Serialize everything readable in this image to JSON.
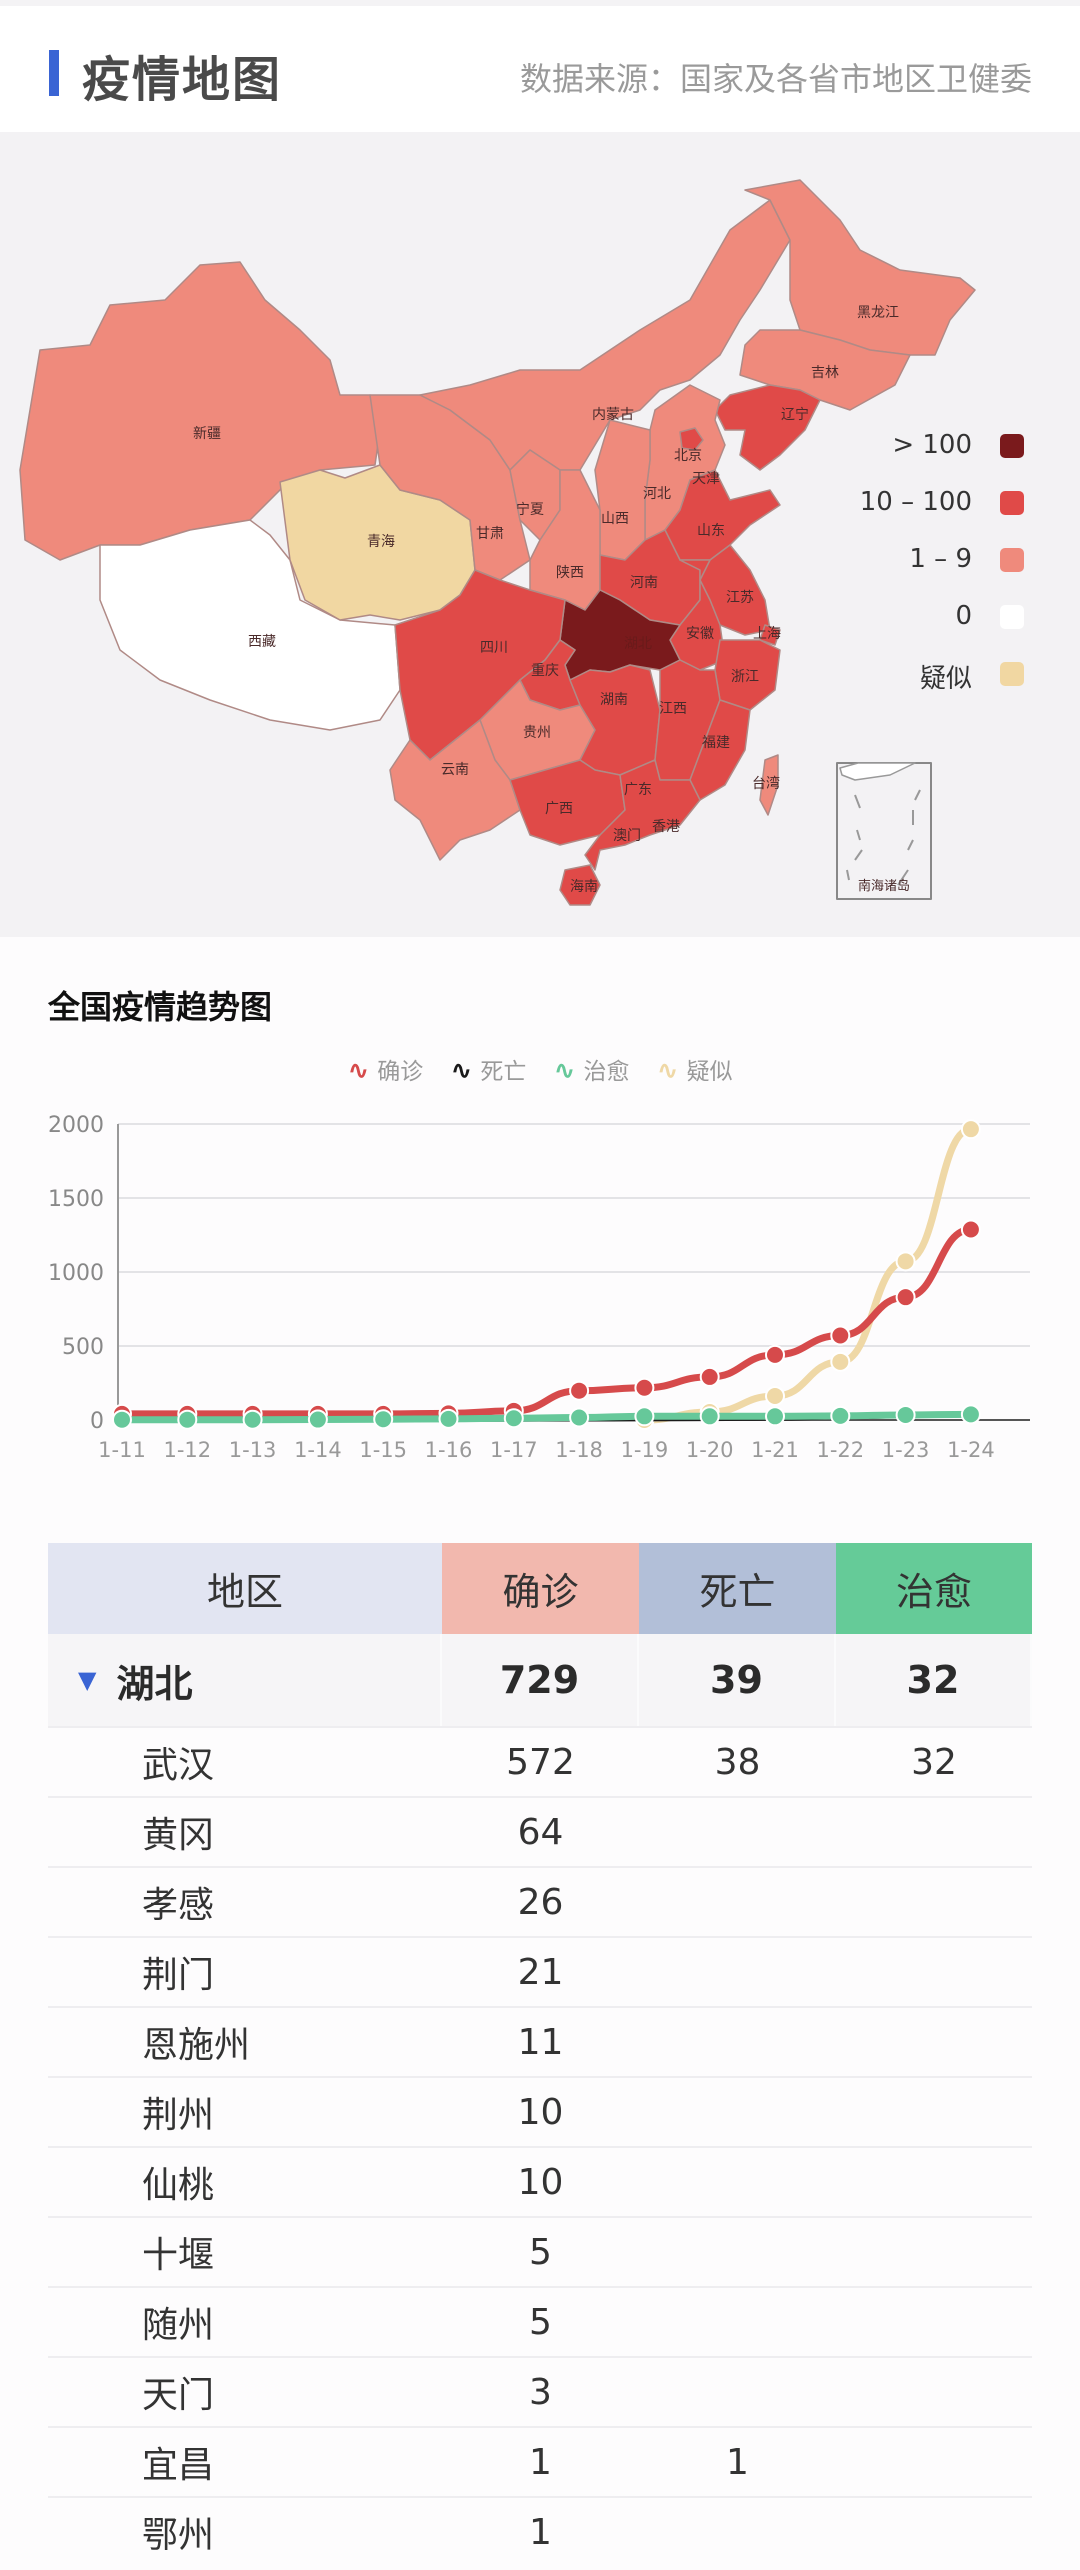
{
  "header": {
    "title": "疫情地图",
    "source": "数据来源：国家及各省市地区卫健委"
  },
  "map": {
    "legend": [
      {
        "label": "> 100",
        "color": "#7a1a1c"
      },
      {
        "label": "10 – 100",
        "color": "#e04a48"
      },
      {
        "label": "1 – 9",
        "color": "#ef8a7c"
      },
      {
        "label": "0",
        "color": "#ffffff"
      },
      {
        "label": "疑似",
        "color": "#f1d7a2"
      }
    ],
    "provinces": {
      "xinjiang": "新疆",
      "xizang": "西藏",
      "qinghai": "青海",
      "gansu": "甘肃",
      "ningxia": "宁夏",
      "neimenggu": "内蒙古",
      "heilongjiang": "黑龙江",
      "jilin": "吉林",
      "liaoning": "辽宁",
      "beijing": "北京",
      "tianjin": "天津",
      "hebei": "河北",
      "shanxi": "山西",
      "shandong": "山东",
      "shaanxi": "陕西",
      "henan": "河南",
      "jiangsu": "江苏",
      "shanghai": "上海",
      "anhui": "安徽",
      "hubei": "湖北",
      "sichuan": "四川",
      "chongqing": "重庆",
      "zhejiang": "浙江",
      "hunan": "湖南",
      "jiangxi": "江西",
      "guizhou": "贵州",
      "fujian": "福建",
      "yunnan": "云南",
      "guangxi": "广西",
      "guangdong": "广东",
      "taiwan": "台湾",
      "hongkong": "香港",
      "macau": "澳门",
      "hainan": "海南"
    },
    "inset_label": "南海诸岛"
  },
  "trend": {
    "title": "全国疫情趋势图",
    "legend": [
      {
        "label": "确诊",
        "color": "#d64a4b"
      },
      {
        "label": "死亡",
        "color": "#1a1a1a"
      },
      {
        "label": "治愈",
        "color": "#66c89a"
      },
      {
        "label": "疑似",
        "color": "#efd8a6"
      }
    ]
  },
  "chart_data": {
    "type": "line",
    "title": "全国疫情趋势图",
    "xlabel": "",
    "ylabel": "",
    "ylim": [
      0,
      2000
    ],
    "yticks": [
      0,
      500,
      1000,
      1500,
      2000
    ],
    "grid": true,
    "legend_position": "top",
    "x": [
      "1-11",
      "1-12",
      "1-13",
      "1-14",
      "1-15",
      "1-16",
      "1-17",
      "1-18",
      "1-19",
      "1-20",
      "1-21",
      "1-22",
      "1-23",
      "1-24"
    ],
    "series": [
      {
        "name": "确诊",
        "color": "#d64a4b",
        "values": [
          41,
          41,
          41,
          41,
          41,
          45,
          62,
          198,
          218,
          291,
          440,
          571,
          830,
          1287
        ]
      },
      {
        "name": "死亡",
        "color": "#1a1a1a",
        "values": [
          1,
          1,
          1,
          1,
          2,
          2,
          2,
          3,
          4,
          6,
          9,
          17,
          25,
          41
        ]
      },
      {
        "name": "治愈",
        "color": "#66c89a",
        "values": [
          2,
          2,
          2,
          3,
          5,
          8,
          12,
          17,
          25,
          25,
          25,
          28,
          34,
          38
        ]
      },
      {
        "name": "疑似",
        "color": "#efd8a6",
        "values": [
          null,
          null,
          null,
          null,
          null,
          null,
          null,
          null,
          0,
          54,
          162,
          393,
          1072,
          1965
        ]
      }
    ]
  },
  "table": {
    "headers": [
      "地区",
      "确诊",
      "死亡",
      "治愈"
    ],
    "province": {
      "name": "湖北",
      "confirmed": "729",
      "deaths": "39",
      "cured": "32"
    },
    "rows": [
      {
        "name": "武汉",
        "confirmed": "572",
        "deaths": "38",
        "cured": "32"
      },
      {
        "name": "黄冈",
        "confirmed": "64",
        "deaths": "",
        "cured": ""
      },
      {
        "name": "孝感",
        "confirmed": "26",
        "deaths": "",
        "cured": ""
      },
      {
        "name": "荆门",
        "confirmed": "21",
        "deaths": "",
        "cured": ""
      },
      {
        "name": "恩施州",
        "confirmed": "11",
        "deaths": "",
        "cured": ""
      },
      {
        "name": "荆州",
        "confirmed": "10",
        "deaths": "",
        "cured": ""
      },
      {
        "name": "仙桃",
        "confirmed": "10",
        "deaths": "",
        "cured": ""
      },
      {
        "name": "十堰",
        "confirmed": "5",
        "deaths": "",
        "cured": ""
      },
      {
        "name": "随州",
        "confirmed": "5",
        "deaths": "",
        "cured": ""
      },
      {
        "name": "天门",
        "confirmed": "3",
        "deaths": "",
        "cured": ""
      },
      {
        "name": "宜昌",
        "confirmed": "1",
        "deaths": "1",
        "cured": ""
      },
      {
        "name": "鄂州",
        "confirmed": "1",
        "deaths": "",
        "cured": ""
      }
    ]
  }
}
